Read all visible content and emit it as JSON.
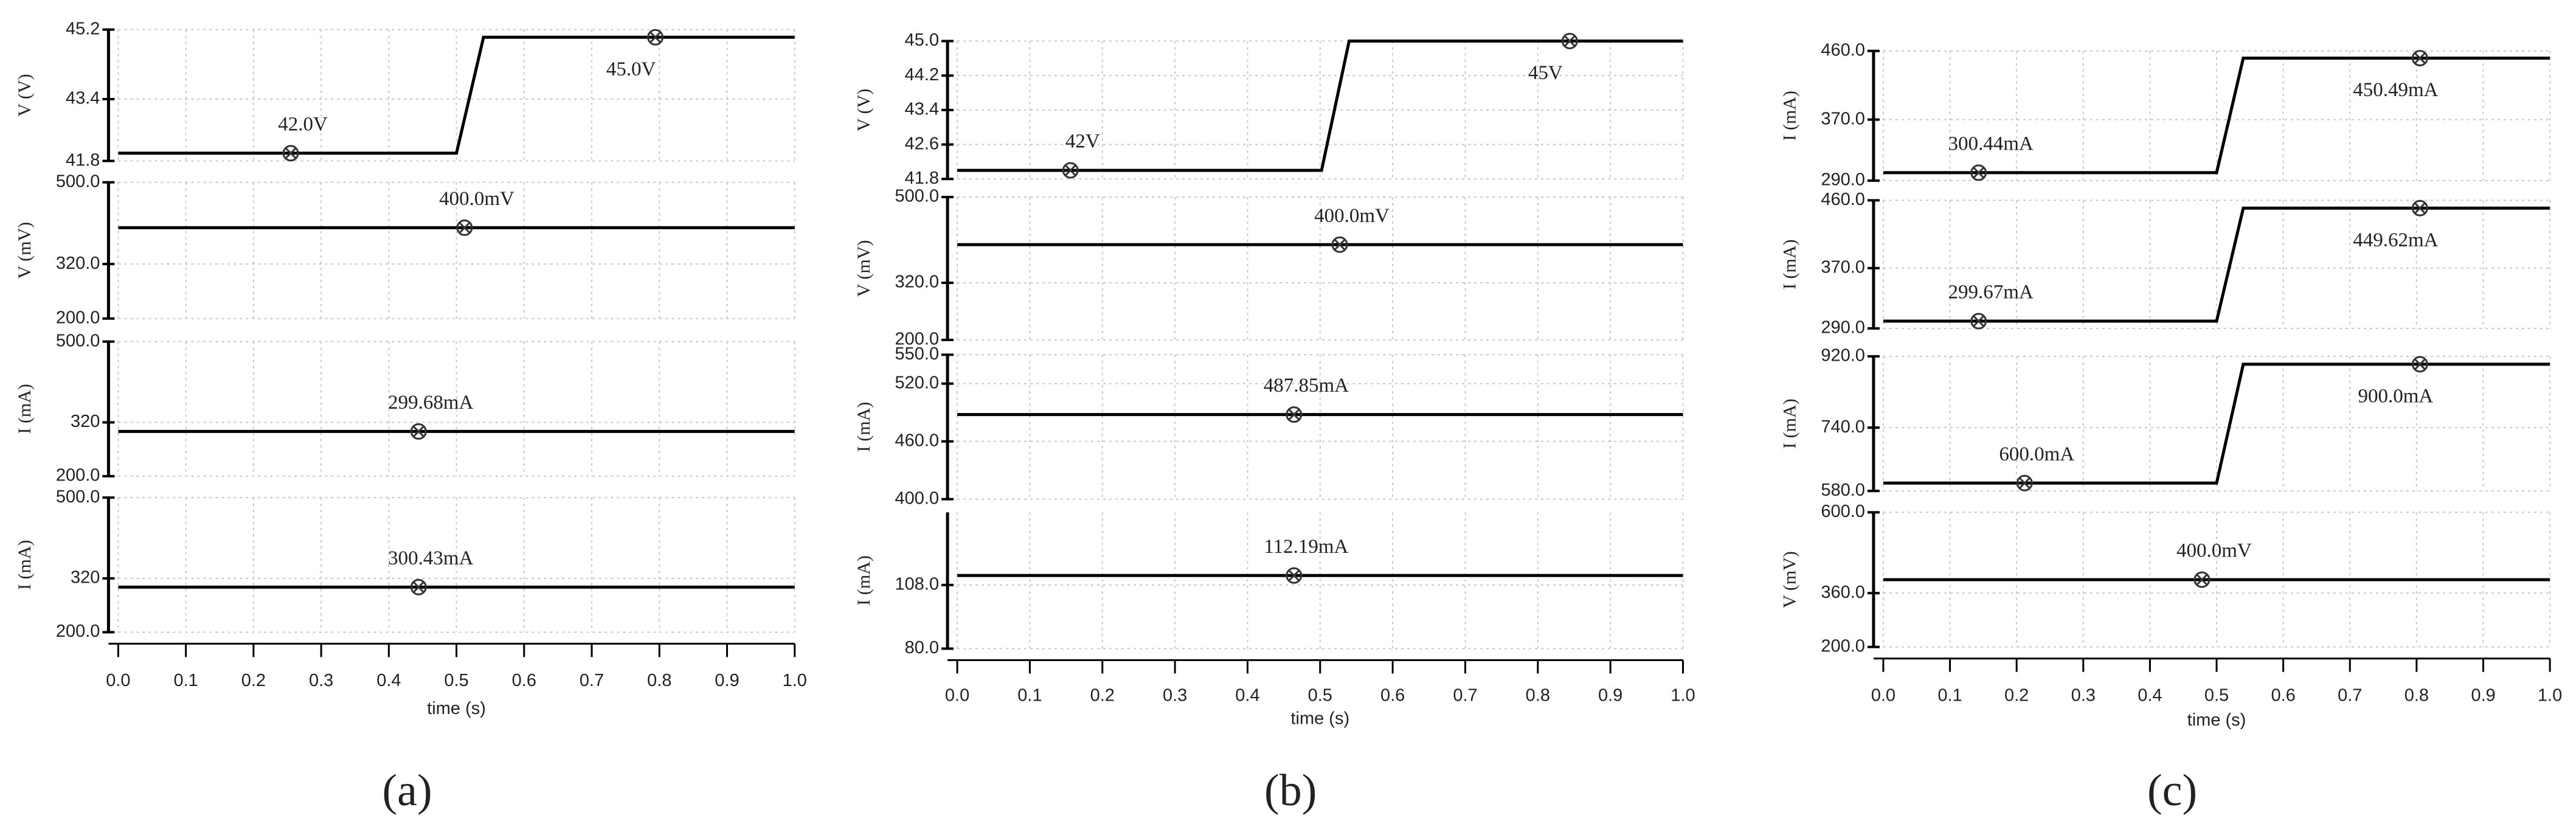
{
  "captions": [
    "(a)",
    "(b)",
    "(c)"
  ],
  "chart_data": [
    {
      "type": "line",
      "y_label": "V (V)",
      "x": [
        0,
        0.5,
        0.54,
        1
      ],
      "values": [
        42.0,
        42.0,
        45.0,
        45.0
      ],
      "color": "#000000",
      "ylim": [
        41.8,
        45.2
      ],
      "yticks": [
        41.8,
        43.4,
        45.2
      ],
      "grid": true,
      "markers": [
        {
          "x": 0.255,
          "y": 42.0,
          "label": "42.0V"
        },
        {
          "x": 0.794,
          "y": 45.0,
          "label": "45.0V"
        }
      ]
    },
    {
      "type": "line",
      "y_label": "V (mV)",
      "x": [
        0,
        1
      ],
      "values": [
        400,
        400
      ],
      "color": "#000000",
      "ylim": [
        200,
        500
      ],
      "yticks": [
        {
          "value": 200,
          "label": "200.0"
        },
        {
          "value": 320,
          "label": "320.0"
        },
        {
          "value": 500,
          "label": "500.0"
        }
      ],
      "grid": true,
      "markers": [
        {
          "x": 0.512,
          "y": 400,
          "label": "400.0mV"
        }
      ]
    },
    {
      "type": "line",
      "y_label": "I (mA)",
      "x": [
        0,
        1
      ],
      "values": [
        299.68,
        299.68
      ],
      "color": "#000000",
      "ylim": [
        200,
        500
      ],
      "yticks": [
        {
          "value": 200,
          "label": "200.0"
        },
        {
          "value": 320,
          "label": "320"
        },
        {
          "value": 500,
          "label": "500.0"
        }
      ],
      "grid": true,
      "markers": [
        {
          "x": 0.444,
          "y": 299.68,
          "label": "299.68mA"
        }
      ]
    },
    {
      "type": "line",
      "y_label": "I (mA)",
      "x": [
        0,
        1
      ],
      "values": [
        300.43,
        300.43
      ],
      "color": "#000000",
      "ylim": [
        200,
        500
      ],
      "yticks": [
        {
          "value": 200,
          "label": "200.0"
        },
        {
          "value": 320,
          "label": "320"
        },
        {
          "value": 500,
          "label": "500.0"
        }
      ],
      "grid": true,
      "markers": [
        {
          "x": 0.444,
          "y": 300.43,
          "label": "300.43mA"
        }
      ],
      "xlim": [
        0,
        1
      ],
      "x_label": "time (s)",
      "xticks": [
        {
          "value": 0,
          "label": "0.0"
        },
        0.1,
        0.2,
        0.3,
        0.4,
        0.5,
        0.6,
        0.7,
        0.8,
        0.9,
        {
          "value": 1,
          "label": "1.0"
        }
      ]
    },
    {
      "type": "line",
      "y_label": "V (V)",
      "x": [
        0,
        0.502,
        0.54,
        1
      ],
      "values": [
        42,
        42,
        45,
        45
      ],
      "color": "#000000",
      "ylim": [
        41.8,
        45.0
      ],
      "yticks": [
        41.8,
        42.6,
        43.4,
        44.2,
        {
          "value": 45,
          "label": "45.0"
        }
      ],
      "grid": true,
      "markers": [
        {
          "x": 0.156,
          "y": 42,
          "label": "42V"
        },
        {
          "x": 0.844,
          "y": 45,
          "label": "45V"
        }
      ]
    },
    {
      "type": "line",
      "y_label": "V (mV)",
      "x": [
        0,
        1
      ],
      "values": [
        400,
        400
      ],
      "color": "#000000",
      "ylim": [
        200,
        500
      ],
      "yticks": [
        {
          "value": 200,
          "label": "200.0"
        },
        {
          "value": 320,
          "label": "320.0"
        },
        {
          "value": 500,
          "label": "500.0"
        }
      ],
      "grid": true,
      "markers": [
        {
          "x": 0.527,
          "y": 400,
          "label": "400.0mV"
        }
      ]
    },
    {
      "type": "line",
      "y_label": "I (mA)",
      "x": [
        0,
        1
      ],
      "values": [
        487.85,
        487.85
      ],
      "color": "#000000",
      "ylim": [
        400,
        550
      ],
      "yticks": [
        {
          "value": 400,
          "label": "400.0"
        },
        {
          "value": 460,
          "label": "460.0"
        },
        {
          "value": 520,
          "label": "520.0"
        },
        {
          "value": 550,
          "label": "550.0"
        }
      ],
      "grid": true,
      "markers": [
        {
          "x": 0.464,
          "y": 487.85,
          "label": "487.85mA"
        }
      ]
    },
    {
      "type": "line",
      "y_label": "I (mA)",
      "x": [
        0,
        1
      ],
      "values": [
        112.19,
        112.19
      ],
      "color": "#000000",
      "ylim": [
        80,
        140
      ],
      "yticks": [
        {
          "value": 80,
          "label": "80.0"
        },
        {
          "value": 108,
          "label": "108.0"
        }
      ],
      "grid": true,
      "markers": [
        {
          "x": 0.464,
          "y": 112.19,
          "label": "112.19mA"
        }
      ],
      "xlim": [
        0,
        1
      ],
      "x_label": "time (s)",
      "xticks": [
        {
          "value": 0,
          "label": "0.0"
        },
        0.1,
        0.2,
        0.3,
        0.4,
        0.5,
        0.6,
        0.7,
        0.8,
        0.9,
        {
          "value": 1,
          "label": "1.0"
        }
      ]
    },
    {
      "type": "line",
      "y_label": "I (mA)",
      "x": [
        0,
        0.5,
        0.54,
        1
      ],
      "values": [
        300.44,
        300.44,
        450.49,
        450.49
      ],
      "color": "#000000",
      "ylim": [
        290,
        460
      ],
      "yticks": [
        {
          "value": 290,
          "label": "290.0"
        },
        {
          "value": 370,
          "label": "370.0"
        },
        {
          "value": 460,
          "label": "460.0"
        }
      ],
      "grid": true,
      "markers": [
        {
          "x": 0.143,
          "y": 300.44,
          "label": "300.44mA"
        },
        {
          "x": 0.805,
          "y": 450.49,
          "label": "450.49mA"
        }
      ]
    },
    {
      "type": "line",
      "y_label": "I (mA)",
      "x": [
        0,
        0.5,
        0.54,
        1
      ],
      "values": [
        299.67,
        299.67,
        449.62,
        449.62
      ],
      "color": "#000000",
      "ylim": [
        290,
        460
      ],
      "yticks": [
        {
          "value": 290,
          "label": "290.0"
        },
        {
          "value": 370,
          "label": "370.0"
        },
        {
          "value": 460,
          "label": "460.0"
        }
      ],
      "grid": true,
      "markers": [
        {
          "x": 0.143,
          "y": 299.67,
          "label": "299.67mA"
        },
        {
          "x": 0.805,
          "y": 449.62,
          "label": "449.62mA"
        }
      ]
    },
    {
      "type": "line",
      "y_label": "I (mA)",
      "x": [
        0,
        0.5,
        0.54,
        1
      ],
      "values": [
        600,
        600,
        900,
        900
      ],
      "color": "#000000",
      "ylim": [
        580,
        920
      ],
      "yticks": [
        {
          "value": 580,
          "label": "580.0"
        },
        {
          "value": 740,
          "label": "740.0"
        },
        {
          "value": 920,
          "label": "920.0"
        }
      ],
      "grid": true,
      "markers": [
        {
          "x": 0.212,
          "y": 600,
          "label": "600.0mA"
        },
        {
          "x": 0.805,
          "y": 900,
          "label": "900.0mA"
        }
      ]
    },
    {
      "type": "line",
      "y_label": "V (mV)",
      "x": [
        0,
        1
      ],
      "values": [
        400,
        400
      ],
      "color": "#000000",
      "ylim": [
        200,
        600
      ],
      "yticks": [
        {
          "value": 200,
          "label": "200.0"
        },
        {
          "value": 360,
          "label": "360.0"
        },
        {
          "value": 600,
          "label": "600.0"
        }
      ],
      "grid": true,
      "markers": [
        {
          "x": 0.478,
          "y": 400,
          "label": "400.0mV"
        }
      ],
      "xlim": [
        0,
        1
      ],
      "x_label": "time (s)",
      "xticks": [
        {
          "value": 0,
          "label": "0.0"
        },
        0.1,
        0.2,
        0.3,
        0.4,
        0.5,
        0.6,
        0.7,
        0.8,
        0.9,
        {
          "value": 1,
          "label": "1.0"
        }
      ]
    }
  ]
}
